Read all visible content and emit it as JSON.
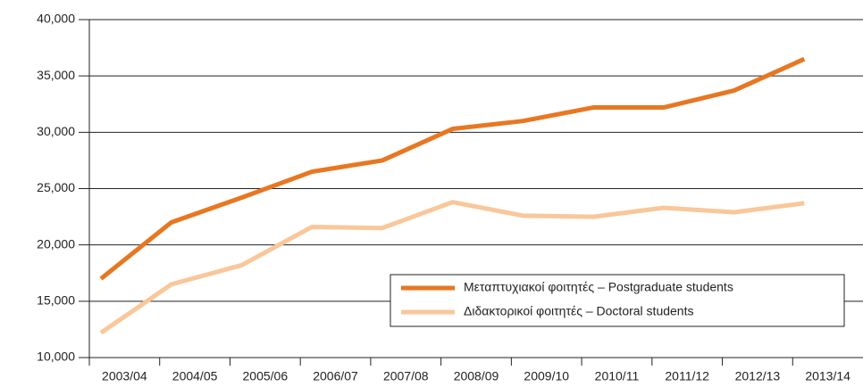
{
  "chart_data": {
    "type": "line",
    "categories": [
      "2003/04",
      "2004/05",
      "2005/06",
      "2006/07",
      "2007/08",
      "2008/09",
      "2009/10",
      "2010/11",
      "2011/12",
      "2012/13",
      "2013/14"
    ],
    "series": [
      {
        "name": "Μεταπτυχιακοί φοιτητές – Postgraduate students",
        "color": "#e87722",
        "values": [
          17000,
          22000,
          24200,
          26500,
          27500,
          30300,
          31000,
          32200,
          32200,
          33700,
          36500
        ]
      },
      {
        "name": "Διδακτορικοί φοιτητές – Doctoral students",
        "color": "#f9c79a",
        "values": [
          12200,
          16500,
          18200,
          21600,
          21500,
          23800,
          22600,
          22500,
          23300,
          22900,
          23700
        ]
      }
    ],
    "ylim": [
      10000,
      40000
    ],
    "yticks": [
      {
        "value": 10000,
        "label": "10,000"
      },
      {
        "value": 15000,
        "label": "15,000"
      },
      {
        "value": 20000,
        "label": "20,000"
      },
      {
        "value": 25000,
        "label": "25,000"
      },
      {
        "value": 30000,
        "label": "30,000"
      },
      {
        "value": 35000,
        "label": "35,000"
      },
      {
        "value": 40000,
        "label": "40,000"
      }
    ],
    "grid": true,
    "legend": "lower right"
  }
}
